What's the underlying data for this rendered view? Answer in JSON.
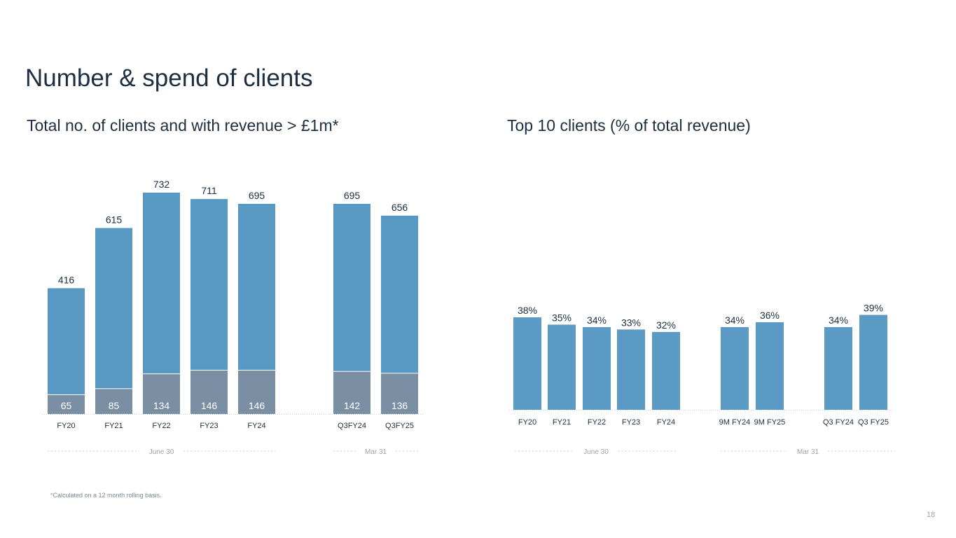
{
  "page_title": "Number & spend of clients",
  "left_subtitle": "Total no. of clients and with revenue > £1m*",
  "right_subtitle": "Top 10 clients (% of total revenue)",
  "footnote": "*Calculated on a 12 month rolling basis.",
  "page_number": "18",
  "colors": {
    "total": "#5899c4",
    "large": "#7a8fa3",
    "bar_top": "#5a9ac5",
    "axis": "#c9cfd6",
    "text": "#1c2e3f",
    "group": "#9aa3ad"
  },
  "chart_data": [
    {
      "type": "bar",
      "title": "Total no. of clients and with revenue > £1m*",
      "categories": [
        "FY20",
        "FY21",
        "FY22",
        "FY23",
        "FY24",
        "Q3FY24",
        "Q3FY25"
      ],
      "series": [
        {
          "name": "Total clients",
          "values": [
            416,
            615,
            732,
            711,
            695,
            695,
            656
          ],
          "labels": [
            "416",
            "615",
            "732",
            "711",
            "695",
            "695",
            "656"
          ]
        },
        {
          "name": "Clients with revenue > £1m",
          "values": [
            65,
            85,
            134,
            146,
            146,
            142,
            136
          ],
          "labels": [
            "65",
            "85",
            "134",
            "146",
            "146",
            "142",
            "136"
          ]
        }
      ],
      "groups": [
        {
          "label": "June 30",
          "categories": [
            "FY20",
            "FY21",
            "FY22",
            "FY23",
            "FY24"
          ]
        },
        {
          "label": "Mar 31",
          "categories": [
            "Q3FY24",
            "Q3FY25"
          ]
        }
      ],
      "ylim": [
        0,
        800
      ],
      "xlabel": "",
      "ylabel": ""
    },
    {
      "type": "bar",
      "title": "Top 10 clients (% of total revenue)",
      "categories": [
        "FY20",
        "FY21",
        "FY22",
        "FY23",
        "FY24",
        "9M FY24",
        "9M FY25",
        "Q3 FY24",
        "Q3 FY25"
      ],
      "series": [
        {
          "name": "Top 10 clients % of revenue",
          "values": [
            38,
            35,
            34,
            33,
            32,
            34,
            36,
            34,
            39
          ],
          "labels": [
            "38%",
            "35%",
            "34%",
            "33%",
            "32%",
            "34%",
            "36%",
            "34%",
            "39%"
          ]
        }
      ],
      "groups": [
        {
          "label": "June 30",
          "categories": [
            "FY20",
            "FY21",
            "FY22",
            "FY23",
            "FY24"
          ]
        },
        {
          "label": "Mar 31",
          "categories": [
            "9M FY24",
            "9M FY25",
            "Q3 FY24",
            "Q3 FY25"
          ]
        }
      ],
      "ylim": [
        0,
        100
      ],
      "xlabel": "",
      "ylabel": ""
    }
  ]
}
